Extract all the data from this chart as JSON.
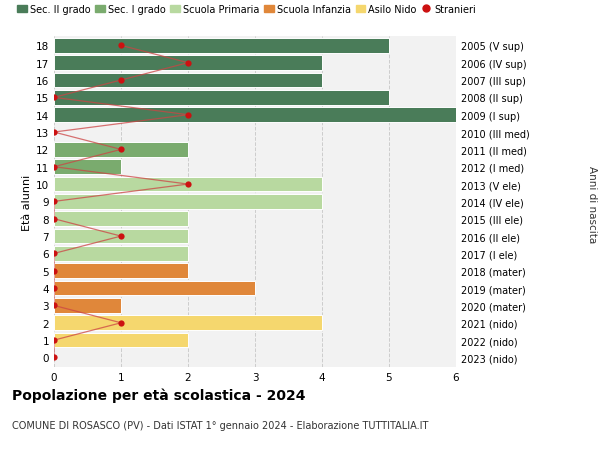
{
  "ages": [
    18,
    17,
    16,
    15,
    14,
    13,
    12,
    11,
    10,
    9,
    8,
    7,
    6,
    5,
    4,
    3,
    2,
    1,
    0
  ],
  "right_labels": [
    "2005 (V sup)",
    "2006 (IV sup)",
    "2007 (III sup)",
    "2008 (II sup)",
    "2009 (I sup)",
    "2010 (III med)",
    "2011 (II med)",
    "2012 (I med)",
    "2013 (V ele)",
    "2014 (IV ele)",
    "2015 (III ele)",
    "2016 (II ele)",
    "2017 (I ele)",
    "2018 (mater)",
    "2019 (mater)",
    "2020 (mater)",
    "2021 (nido)",
    "2022 (nido)",
    "2023 (nido)"
  ],
  "bar_values": [
    5,
    4,
    4,
    5,
    6,
    0,
    2,
    1,
    4,
    4,
    2,
    2,
    2,
    2,
    3,
    1,
    4,
    2,
    0
  ],
  "bar_colors": [
    "#4a7c59",
    "#4a7c59",
    "#4a7c59",
    "#4a7c59",
    "#4a7c59",
    "#7aab6e",
    "#7aab6e",
    "#7aab6e",
    "#b8d9a0",
    "#b8d9a0",
    "#b8d9a0",
    "#b8d9a0",
    "#b8d9a0",
    "#e0873a",
    "#e0873a",
    "#e0873a",
    "#f5d76e",
    "#f5d76e",
    "#f5d76e"
  ],
  "stranieri_values": [
    1,
    2,
    1,
    0,
    2,
    0,
    1,
    0,
    2,
    0,
    0,
    1,
    0,
    0,
    0,
    0,
    1,
    0,
    0
  ],
  "legend_labels": [
    "Sec. II grado",
    "Sec. I grado",
    "Scuola Primaria",
    "Scuola Infanzia",
    "Asilo Nido",
    "Stranieri"
  ],
  "legend_colors": [
    "#4a7c59",
    "#7aab6e",
    "#b8d9a0",
    "#e0873a",
    "#f5d76e",
    "#cc1111"
  ],
  "ylabel_left": "Età alunni",
  "ylabel_right": "Anni di nascita",
  "title": "Popolazione per età scolastica - 2024",
  "subtitle": "COMUNE DI ROSASCO (PV) - Dati ISTAT 1° gennaio 2024 - Elaborazione TUTTITALIA.IT",
  "xlim": [
    0,
    6
  ],
  "bg_color": "#ffffff",
  "bar_height": 0.85,
  "grid_color": "#cccccc",
  "stranieri_color": "#cc1111",
  "stranieri_line_color": "#cc4444",
  "axes_face_color": "#f2f2f2"
}
